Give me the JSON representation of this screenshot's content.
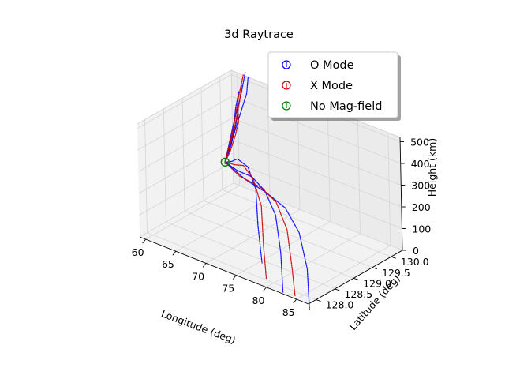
{
  "chart_data": {
    "type": "3d-line",
    "title": "3d Raytrace",
    "xlabel": "Longitude (deg)",
    "ylabel": "Latitude (deg)",
    "zlabel": "Height (km)",
    "x_ticks": [
      "60",
      "65",
      "70",
      "75",
      "80",
      "85"
    ],
    "y_ticks": [
      "128.0",
      "128.5",
      "129.0",
      "129.5",
      "130.0"
    ],
    "z_ticks": [
      "0",
      "100",
      "200",
      "300",
      "400",
      "500"
    ],
    "xlim": [
      59,
      87
    ],
    "ylim": [
      127.8,
      130.3
    ],
    "zlim": [
      0,
      520
    ],
    "grid": true,
    "legend_position": "top-right",
    "legend": [
      {
        "label": "O Mode",
        "color": "#0000ff"
      },
      {
        "label": "X Mode",
        "color": "#cc0000"
      },
      {
        "label": "No Mag-field",
        "color": "#008000"
      }
    ],
    "origin": {
      "lon": 60.2,
      "lat": 129.9,
      "height": 150
    },
    "series": [
      {
        "name": "O Mode",
        "color": "#0000ff",
        "rays": [
          [
            [
              60.2,
              129.9,
              150
            ],
            [
              60.4,
              130.1,
              300
            ],
            [
              60.6,
              130.3,
              430
            ],
            [
              60.7,
              130.4,
              520
            ]
          ],
          [
            [
              60.2,
              129.9,
              150
            ],
            [
              60.9,
              130.1,
              300
            ],
            [
              61.5,
              130.3,
              440
            ],
            [
              61.8,
              130.3,
              520
            ]
          ],
          [
            [
              60.2,
              129.9,
              150
            ],
            [
              61.6,
              129.9,
              300
            ],
            [
              62.8,
              129.8,
              440
            ],
            [
              63.4,
              129.8,
              520
            ]
          ],
          [
            [
              60.2,
              129.9,
              150
            ],
            [
              62.5,
              129.7,
              270
            ],
            [
              64.5,
              129.5,
              390
            ],
            [
              65.6,
              129.4,
              470
            ],
            [
              66.4,
              129.3,
              520
            ]
          ],
          [
            [
              60.2,
              129.9,
              150
            ],
            [
              64.5,
              129.4,
              250
            ],
            [
              68.0,
              129.0,
              340
            ],
            [
              71.0,
              128.8,
              355
            ],
            [
              73.5,
              128.6,
              300
            ],
            [
              75.0,
              128.4,
              170
            ],
            [
              76.2,
              128.3,
              20
            ]
          ],
          [
            [
              60.2,
              129.9,
              150
            ],
            [
              66.0,
              129.3,
              235
            ],
            [
              71.0,
              128.9,
              300
            ],
            [
              75.0,
              128.6,
              310
            ],
            [
              78.0,
              128.4,
              250
            ],
            [
              80.0,
              128.2,
              120
            ],
            [
              81.5,
              128.0,
              -30
            ]
          ],
          [
            [
              60.2,
              129.9,
              150
            ],
            [
              68.0,
              129.2,
              225
            ],
            [
              74.0,
              128.8,
              270
            ],
            [
              79.0,
              128.5,
              285
            ],
            [
              82.5,
              128.3,
              230
            ],
            [
              85.0,
              128.1,
              110
            ],
            [
              86.5,
              127.9,
              -40
            ]
          ]
        ]
      },
      {
        "name": "X Mode",
        "color": "#cc0000",
        "rays": [
          [
            [
              60.2,
              129.9,
              150
            ],
            [
              60.5,
              130.1,
              300
            ],
            [
              60.8,
              130.2,
              430
            ],
            [
              61.0,
              130.3,
              520
            ]
          ],
          [
            [
              60.2,
              129.9,
              150
            ],
            [
              61.2,
              130.0,
              300
            ],
            [
              62.2,
              130.0,
              440
            ],
            [
              62.6,
              130.0,
              520
            ]
          ],
          [
            [
              60.2,
              129.9,
              150
            ],
            [
              63.0,
              129.6,
              260
            ],
            [
              65.2,
              129.4,
              380
            ],
            [
              66.4,
              129.3,
              460
            ],
            [
              67.0,
              129.2,
              520
            ]
          ],
          [
            [
              60.2,
              129.9,
              150
            ],
            [
              65.0,
              129.4,
              240
            ],
            [
              69.0,
              129.0,
              320
            ],
            [
              72.5,
              128.7,
              325
            ],
            [
              75.0,
              128.5,
              250
            ],
            [
              76.5,
              128.3,
              100
            ],
            [
              77.5,
              128.2,
              -30
            ]
          ],
          [
            [
              60.2,
              129.9,
              150
            ],
            [
              67.0,
              129.2,
              230
            ],
            [
              73.0,
              128.8,
              285
            ],
            [
              77.5,
              128.5,
              295
            ],
            [
              80.5,
              128.3,
              220
            ],
            [
              82.5,
              128.1,
              80
            ],
            [
              83.5,
              128.0,
              -20
            ]
          ]
        ]
      },
      {
        "name": "No Mag-field",
        "color": "#008000",
        "rays": [
          [
            [
              60.2,
              129.9,
              150
            ],
            [
              60.2,
              129.9,
              150
            ]
          ]
        ]
      }
    ]
  }
}
